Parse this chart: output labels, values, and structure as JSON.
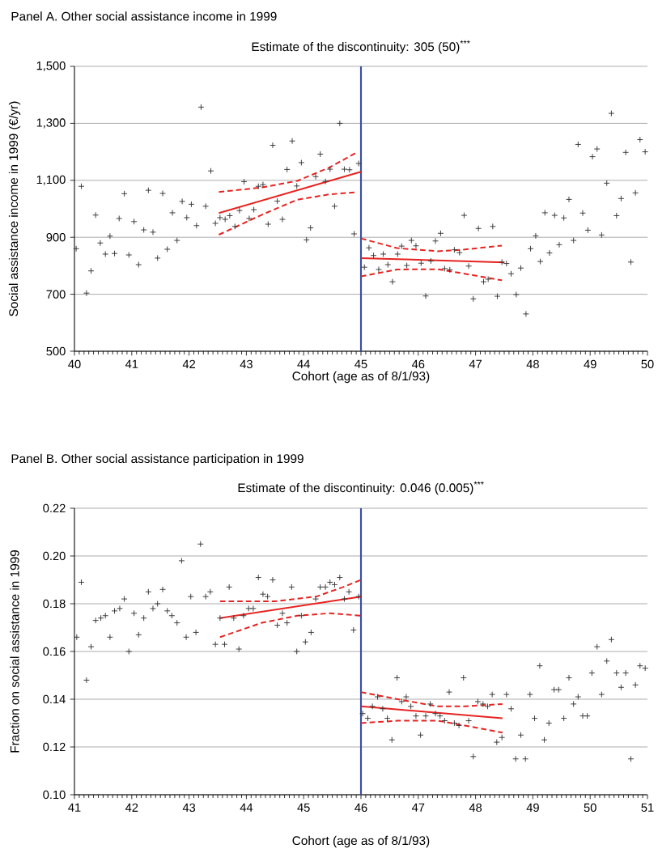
{
  "chart_data": [
    {
      "type": "scatter",
      "title": "Panel A. Other social assistance income in 1999",
      "subtitle": "Estimate of the discontinuity: 305 (50)$^{***}$",
      "xlabel": "Cohort (age as of 8/1/93)",
      "ylabel": "Social assistance income in 1999 (€/yr)",
      "xlim": [
        40,
        50
      ],
      "xticks": [
        40,
        41,
        42,
        43,
        44,
        45,
        46,
        47,
        48,
        49,
        50
      ],
      "ylim": [
        500,
        1500
      ],
      "yticks": [
        500,
        700,
        900,
        {
          "value": 1100,
          "label": "1,100"
        },
        {
          "value": 1300,
          "label": "1,300"
        },
        {
          "value": 1500,
          "label": "1,500"
        }
      ],
      "grid": "y",
      "ref_lines": [
        {
          "axis": "x",
          "value": 45,
          "color": "#3a4ea0"
        }
      ],
      "series": [
        {
          "marker": "cross",
          "color": "#333333",
          "x": [
            40.03,
            40.12,
            40.21,
            40.29,
            40.37,
            40.45,
            40.54,
            40.62,
            40.7,
            40.78,
            40.87,
            40.95,
            41.04,
            41.12,
            41.21,
            41.29,
            41.37,
            41.45,
            41.54,
            41.62,
            41.71,
            41.79,
            41.88,
            41.96,
            42.04,
            42.13,
            42.21,
            42.29,
            42.38,
            42.46,
            42.54,
            42.63,
            42.71,
            42.8,
            42.88,
            42.96,
            43.05,
            43.13,
            43.21,
            43.29,
            43.38,
            43.46,
            43.54,
            43.63,
            43.71,
            43.8,
            43.88,
            43.96,
            44.05,
            44.12,
            44.21,
            44.29,
            44.38,
            44.46,
            44.54,
            44.63,
            44.71,
            44.8,
            44.88,
            44.96,
            45.06,
            45.14,
            45.22,
            45.31,
            45.39,
            45.47,
            45.55,
            45.64,
            45.71,
            45.8,
            45.88,
            45.96,
            46.05,
            46.13,
            46.22,
            46.3,
            46.39,
            46.46,
            46.55,
            46.63,
            46.72,
            46.8,
            46.88,
            46.96,
            47.05,
            47.14,
            47.22,
            47.3,
            47.38,
            47.46,
            47.54,
            47.62,
            47.71,
            47.79,
            47.88,
            47.96,
            48.05,
            48.13,
            48.21,
            48.29,
            48.38,
            48.46,
            48.54,
            48.63,
            48.71,
            48.79,
            48.87,
            48.96,
            49.04,
            49.12,
            49.2,
            49.29,
            49.37,
            49.46,
            49.54,
            49.62,
            49.71,
            49.79,
            49.87,
            49.96
          ],
          "values": [
            860,
            1079,
            704,
            782,
            978,
            880,
            841,
            904,
            843,
            966,
            1053,
            838,
            955,
            804,
            926,
            1065,
            918,
            827,
            1054,
            858,
            986,
            889,
            1026,
            969,
            1016,
            941,
            1357,
            1009,
            1133,
            949,
            969,
            963,
            976,
            938,
            994,
            1095,
            966,
            997,
            1079,
            1085,
            946,
            1223,
            1027,
            963,
            1138,
            1238,
            1080,
            1162,
            891,
            933,
            1113,
            1192,
            1096,
            1139,
            1009,
            1300,
            1139,
            1137,
            912,
            1159,
            795,
            863,
            836,
            787,
            841,
            804,
            744,
            841,
            869,
            801,
            889,
            870,
            809,
            694,
            817,
            887,
            914,
            790,
            786,
            856,
            846,
            977,
            799,
            684,
            931,
            744,
            753,
            938,
            693,
            813,
            808,
            772,
            699,
            792,
            631,
            860,
            905,
            815,
            986,
            845,
            977,
            874,
            968,
            1033,
            889,
            1226,
            985,
            925,
            1183,
            1210,
            908,
            1090,
            1335,
            976,
            1036,
            1198,
            813,
            1056,
            1243,
            1200
          ]
        },
        {
          "type": "line",
          "line_style": "solid",
          "color": "#e52421",
          "x": [
            42.52,
            45
          ],
          "values": [
            985,
            1130
          ]
        },
        {
          "type": "line",
          "line_style": "dashed",
          "color": "#e52421",
          "x": [
            42.52,
            43.28,
            43.89,
            44.46,
            44.92
          ],
          "values": [
            1059,
            1075,
            1098,
            1146,
            1197
          ]
        },
        {
          "type": "line",
          "line_style": "dashed",
          "color": "#e52421",
          "x": [
            42.52,
            43.28,
            43.89,
            44.46,
            44.92
          ],
          "values": [
            909,
            980,
            1032,
            1051,
            1058
          ]
        },
        {
          "type": "line",
          "line_style": "solid",
          "color": "#e52421",
          "x": [
            45,
            47.5
          ],
          "values": [
            827,
            812
          ]
        },
        {
          "type": "line",
          "line_style": "dashed",
          "color": "#e52421",
          "x": [
            45,
            45.63,
            46.34,
            46.81,
            47.46
          ],
          "values": [
            896,
            862,
            851,
            857,
            871
          ]
        },
        {
          "type": "line",
          "line_style": "dashed",
          "color": "#e52421",
          "x": [
            45,
            45.63,
            46.34,
            46.81,
            47.46
          ],
          "values": [
            763,
            787,
            788,
            772,
            749
          ]
        }
      ]
    },
    {
      "type": "scatter",
      "title": "Panel B. Other social assistance participation in 1999",
      "subtitle": "Estimate of the discontinuity: 0.046 (0.005)$^{***}$",
      "xlabel": "Cohort (age as of 8/1/93)",
      "ylabel": "Fraction on social assistance in 1999",
      "xlim": [
        41,
        51
      ],
      "xticks": [
        41,
        42,
        43,
        44,
        45,
        46,
        47,
        48,
        49,
        50,
        51
      ],
      "ylim": [
        0.1,
        0.22
      ],
      "yticks": [
        {
          "value": 0.1,
          "label": "0.10"
        },
        {
          "value": 0.12,
          "label": "0.12"
        },
        {
          "value": 0.14,
          "label": "0.14"
        },
        {
          "value": 0.16,
          "label": "0.16"
        },
        {
          "value": 0.18,
          "label": "0.18"
        },
        {
          "value": 0.2,
          "label": "0.20"
        },
        {
          "value": 0.22,
          "label": "0.22"
        }
      ],
      "grid": "y",
      "ref_lines": [
        {
          "axis": "x",
          "value": 46,
          "color": "#3a4ea0"
        }
      ],
      "series": [
        {
          "marker": "cross",
          "color": "#333333",
          "x": [
            41.04,
            41.12,
            41.21,
            41.29,
            41.37,
            41.46,
            41.54,
            41.62,
            41.7,
            41.79,
            41.87,
            41.95,
            42.04,
            42.12,
            42.21,
            42.29,
            42.37,
            42.45,
            42.54,
            42.62,
            42.7,
            42.79,
            42.87,
            42.95,
            43.03,
            43.12,
            43.2,
            43.29,
            43.37,
            43.46,
            43.54,
            43.62,
            43.7,
            43.78,
            43.87,
            43.95,
            44.04,
            44.12,
            44.21,
            44.29,
            44.37,
            44.46,
            44.54,
            44.63,
            44.71,
            44.79,
            44.88,
            44.96,
            45.03,
            45.13,
            45.21,
            45.29,
            45.38,
            45.46,
            45.54,
            45.63,
            45.71,
            45.79,
            45.87,
            45.96,
            46.03,
            46.12,
            46.2,
            46.29,
            46.38,
            46.46,
            46.54,
            46.63,
            46.71,
            46.79,
            46.87,
            46.96,
            47.04,
            47.13,
            47.21,
            47.3,
            47.38,
            47.46,
            47.54,
            47.63,
            47.71,
            47.79,
            47.88,
            47.96,
            48.04,
            48.13,
            48.21,
            48.29,
            48.37,
            48.46,
            48.54,
            48.62,
            48.7,
            48.79,
            48.87,
            48.95,
            49.03,
            49.12,
            49.2,
            49.28,
            49.37,
            49.45,
            49.54,
            49.63,
            49.71,
            49.79,
            49.87,
            49.95,
            50.03,
            50.12,
            50.2,
            50.29,
            50.37,
            50.46,
            50.54,
            50.62,
            50.71,
            50.79,
            50.87,
            50.96
          ],
          "values": [
            0.166,
            0.189,
            0.148,
            0.162,
            0.173,
            0.174,
            0.175,
            0.166,
            0.177,
            0.178,
            0.182,
            0.16,
            0.176,
            0.167,
            0.174,
            0.185,
            0.178,
            0.18,
            0.186,
            0.177,
            0.175,
            0.172,
            0.198,
            0.166,
            0.183,
            0.168,
            0.205,
            0.183,
            0.185,
            0.163,
            0.174,
            0.163,
            0.187,
            0.174,
            0.161,
            0.175,
            0.178,
            0.178,
            0.191,
            0.184,
            0.183,
            0.19,
            0.171,
            0.176,
            0.172,
            0.187,
            0.16,
            0.175,
            0.164,
            0.168,
            0.182,
            0.187,
            0.187,
            0.189,
            0.188,
            0.191,
            0.182,
            0.185,
            0.169,
            0.183,
            0.134,
            0.132,
            0.137,
            0.141,
            0.136,
            0.132,
            0.123,
            0.149,
            0.139,
            0.141,
            0.137,
            0.133,
            0.125,
            0.133,
            0.138,
            0.134,
            0.133,
            0.131,
            0.143,
            0.13,
            0.129,
            0.149,
            0.131,
            0.116,
            0.139,
            0.138,
            0.137,
            0.142,
            0.122,
            0.124,
            0.142,
            0.136,
            0.115,
            0.125,
            0.115,
            0.142,
            0.132,
            0.154,
            0.123,
            0.13,
            0.144,
            0.144,
            0.132,
            0.149,
            0.138,
            0.141,
            0.133,
            0.133,
            0.151,
            0.162,
            0.142,
            0.156,
            0.165,
            0.151,
            0.145,
            0.151,
            0.115,
            0.146,
            0.154,
            0.153
          ]
        },
        {
          "type": "line",
          "line_style": "solid",
          "color": "#e52421",
          "x": [
            43.54,
            46
          ],
          "values": [
            0.174,
            0.183
          ]
        },
        {
          "type": "line",
          "line_style": "dashed",
          "color": "#e52421",
          "x": [
            43.54,
            44.5,
            45.22,
            45.69,
            46
          ],
          "values": [
            0.181,
            0.181,
            0.183,
            0.187,
            0.19
          ]
        },
        {
          "type": "line",
          "line_style": "dashed",
          "color": "#e52421",
          "x": [
            43.54,
            44.27,
            44.89,
            45.45,
            46
          ],
          "values": [
            0.166,
            0.172,
            0.175,
            0.176,
            0.175
          ]
        },
        {
          "type": "line",
          "line_style": "solid",
          "color": "#e52421",
          "x": [
            46,
            48.47
          ],
          "values": [
            0.137,
            0.132
          ]
        },
        {
          "type": "line",
          "line_style": "dashed",
          "color": "#e52421",
          "x": [
            46,
            46.64,
            47.34,
            47.81,
            48.47
          ],
          "values": [
            0.143,
            0.14,
            0.137,
            0.137,
            0.138
          ]
        },
        {
          "type": "line",
          "line_style": "dashed",
          "color": "#e52421",
          "x": [
            46,
            46.64,
            47.34,
            47.81,
            48.47
          ],
          "values": [
            0.13,
            0.131,
            0.131,
            0.129,
            0.126
          ]
        }
      ]
    }
  ]
}
